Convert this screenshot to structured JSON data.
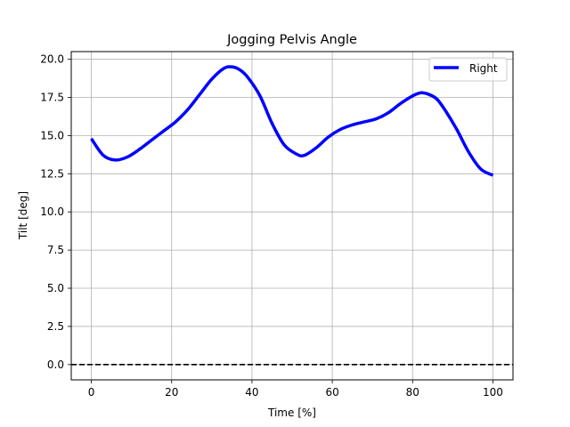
{
  "chart_data": {
    "type": "line",
    "title": "Jogging Pelvis Angle",
    "xlabel": "Time [%]",
    "ylabel": "Tilt [deg]",
    "xlim": [
      -5,
      105
    ],
    "ylim": [
      -1.0,
      20.5
    ],
    "xticks": [
      0,
      20,
      40,
      60,
      80,
      100
    ],
    "xtick_labels": [
      "0",
      "20",
      "40",
      "60",
      "80",
      "100"
    ],
    "yticks": [
      0,
      2.5,
      5,
      7.5,
      10,
      12.5,
      15,
      17.5,
      20
    ],
    "ytick_labels": [
      "0.0",
      "2.5",
      "5.0",
      "7.5",
      "10.0",
      "12.5",
      "15.0",
      "17.5",
      "20.0"
    ],
    "grid": true,
    "legend_position": "top-right",
    "reference_line": {
      "y": 0,
      "style": "dashed",
      "color": "#000000"
    },
    "series": [
      {
        "name": "Right",
        "color": "#0000ff",
        "x": [
          0,
          3,
          6,
          9,
          12,
          15,
          18,
          21,
          24,
          27,
          30,
          33,
          35,
          37,
          39,
          42,
          45,
          48,
          51,
          53,
          56,
          59,
          62,
          65,
          68,
          71,
          74,
          77,
          80,
          82,
          84,
          86,
          88,
          91,
          94,
          97,
          100
        ],
        "y": [
          14.8,
          13.7,
          13.4,
          13.6,
          14.1,
          14.7,
          15.3,
          15.9,
          16.7,
          17.7,
          18.7,
          19.4,
          19.5,
          19.3,
          18.8,
          17.6,
          15.8,
          14.4,
          13.8,
          13.7,
          14.2,
          14.9,
          15.4,
          15.7,
          15.9,
          16.1,
          16.5,
          17.1,
          17.6,
          17.8,
          17.7,
          17.4,
          16.7,
          15.4,
          13.9,
          12.8,
          12.4
        ]
      }
    ]
  }
}
